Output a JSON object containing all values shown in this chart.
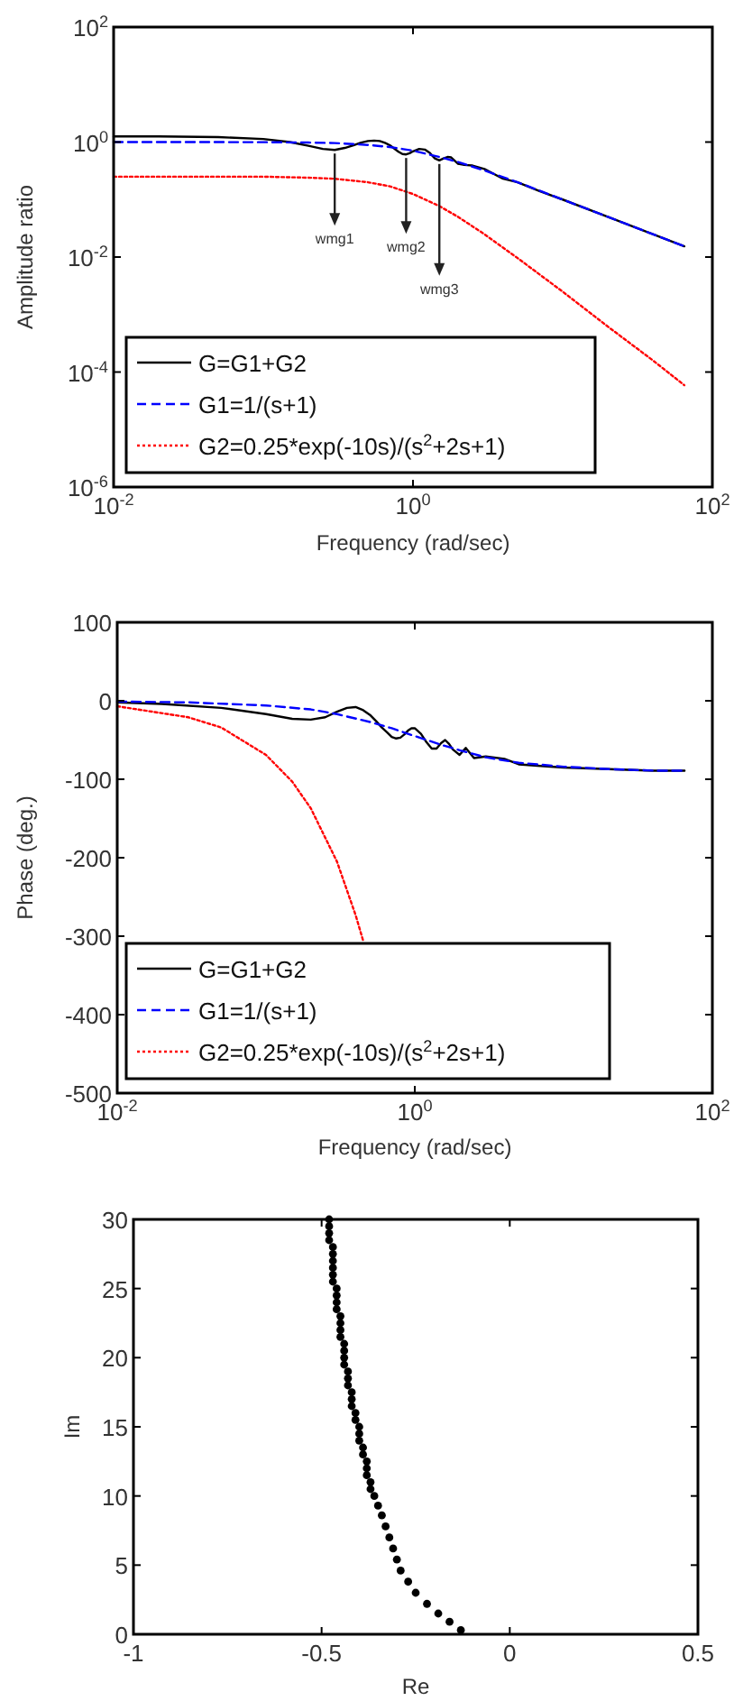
{
  "chart_data": [
    {
      "type": "line",
      "xlabel": "Frequency (rad/sec)",
      "ylabel": "Amplitude ratio",
      "log": "xy",
      "legend": "bottom left",
      "xlim": [
        0.01,
        100
      ],
      "xticks": [
        {
          "value": 0.01,
          "label": "10$^{-2}$"
        },
        {
          "value": 1,
          "label": "10$^{0}$"
        },
        {
          "value": 100,
          "label": "10$^{2}$"
        }
      ],
      "ylim": [
        1e-06,
        100
      ],
      "yticks": [
        {
          "value": 1e-06,
          "label": "10$^{-6}$"
        },
        {
          "value": 0.0001,
          "label": "10$^{-4}$"
        },
        {
          "value": 0.01,
          "label": "10$^{-2}$"
        },
        {
          "value": 1,
          "label": "10$^{0}$"
        },
        {
          "value": 100,
          "label": "10$^{2}$"
        }
      ],
      "series": [
        {
          "name": "G=G1+G2",
          "color": "#000000",
          "line_style": "solid",
          "x": [
            0.01,
            0.02,
            0.05,
            0.1,
            0.15,
            0.2,
            0.25,
            0.3,
            0.35,
            0.4,
            0.45,
            0.5,
            0.55,
            0.6,
            0.65,
            0.7,
            0.75,
            0.8,
            0.85,
            0.9,
            0.95,
            1,
            1.1,
            1.2,
            1.3,
            1.4,
            1.5,
            1.6,
            1.7,
            1.8,
            2,
            2.2,
            2.5,
            3,
            4,
            5,
            7,
            10,
            20,
            40,
            65
          ],
          "values": [
            1.25,
            1.25,
            1.22,
            1.13,
            1.0,
            0.86,
            0.76,
            0.73,
            0.79,
            0.88,
            0.98,
            1.04,
            1.06,
            1.04,
            0.97,
            0.88,
            0.77,
            0.68,
            0.62,
            0.61,
            0.64,
            0.69,
            0.76,
            0.74,
            0.64,
            0.52,
            0.48,
            0.52,
            0.55,
            0.54,
            0.42,
            0.4,
            0.39,
            0.34,
            0.23,
            0.2,
            0.14,
            0.1,
            0.05,
            0.025,
            0.0154
          ]
        },
        {
          "name": "G1=1/(s+1)",
          "color": "#0000ff",
          "line_style": "dashed",
          "x": [
            0.01,
            0.03,
            0.1,
            0.2,
            0.3,
            0.5,
            0.7,
            1,
            1.5,
            2,
            3,
            5,
            10,
            20,
            40,
            65
          ],
          "values": [
            1,
            1,
            0.995,
            0.98,
            0.96,
            0.89,
            0.82,
            0.71,
            0.55,
            0.45,
            0.32,
            0.2,
            0.1,
            0.05,
            0.025,
            0.0154
          ]
        },
        {
          "name": "G2=0.25*exp(-10s)/(s$^{2}$+2s+1)",
          "color": "#ff0000",
          "line_style": "dotted",
          "x": [
            0.01,
            0.1,
            0.2,
            0.3,
            0.5,
            0.7,
            1,
            1.5,
            2,
            3,
            5,
            10,
            20,
            40,
            65
          ],
          "values": [
            0.25,
            0.25,
            0.24,
            0.23,
            0.2,
            0.17,
            0.125,
            0.077,
            0.05,
            0.025,
            0.0096,
            0.0025,
            0.00062,
            0.00016,
            5.9e-05
          ]
        }
      ],
      "annotations": [
        {
          "text": "wmg1",
          "x": 0.3,
          "y": 0.73
        },
        {
          "text": "wmg2",
          "x": 0.9,
          "y": 0.61
        },
        {
          "text": "wmg3",
          "x": 1.5,
          "y": 0.48
        }
      ]
    },
    {
      "type": "line",
      "xlabel": "Frequency (rad/sec)",
      "ylabel": "Phase (deg.)",
      "log": "x",
      "legend": "bottom left",
      "xlim": [
        0.01,
        100
      ],
      "xticks": [
        {
          "value": 0.01,
          "label": "10$^{-2}$"
        },
        {
          "value": 1,
          "label": "10$^{0}$"
        },
        {
          "value": 100,
          "label": "10$^{2}$"
        }
      ],
      "ylim": [
        -500,
        100
      ],
      "yticks": [
        -500,
        -400,
        -300,
        -200,
        -100,
        0,
        100
      ],
      "series": [
        {
          "name": "G=G1+G2",
          "color": "#000000",
          "line_style": "solid",
          "x": [
            0.01,
            0.02,
            0.05,
            0.1,
            0.15,
            0.2,
            0.25,
            0.3,
            0.35,
            0.4,
            0.45,
            0.5,
            0.55,
            0.6,
            0.65,
            0.7,
            0.75,
            0.8,
            0.85,
            0.9,
            0.95,
            1,
            1.1,
            1.2,
            1.3,
            1.4,
            1.5,
            1.6,
            1.7,
            1.8,
            2,
            2.2,
            2.5,
            3,
            4,
            5,
            7,
            10,
            20,
            40,
            65
          ],
          "values": [
            -2,
            -4,
            -9,
            -17,
            -23,
            -24,
            -21,
            -14,
            -9,
            -8,
            -12,
            -18,
            -26,
            -34,
            -40,
            -46,
            -48,
            -47,
            -43,
            -38,
            -35,
            -35,
            -42,
            -53,
            -61,
            -61,
            -54,
            -50,
            -55,
            -62,
            -69,
            -60,
            -73,
            -71,
            -74,
            -81,
            -83,
            -85,
            -87,
            -89,
            -89
          ]
        },
        {
          "name": "G1=1/(s+1)",
          "color": "#0000ff",
          "line_style": "dashed",
          "x": [
            0.01,
            0.03,
            0.1,
            0.2,
            0.3,
            0.5,
            0.7,
            1,
            1.5,
            2,
            3,
            5,
            10,
            20,
            40,
            65
          ],
          "values": [
            -1,
            -2,
            -6,
            -11,
            -17,
            -27,
            -35,
            -45,
            -56,
            -63,
            -72,
            -79,
            -84,
            -87,
            -89,
            -89
          ]
        },
        {
          "name": "G2=0.25*exp(-10s)/(s$^{2}$+2s+1)",
          "color": "#ff0000",
          "line_style": "dotted",
          "x": [
            0.01,
            0.03,
            0.05,
            0.1,
            0.15,
            0.2,
            0.3,
            0.4,
            0.45
          ],
          "values": [
            -7,
            -21,
            -34,
            -69,
            -103,
            -137,
            -205,
            -273,
            -306
          ]
        }
      ]
    },
    {
      "type": "scatter",
      "xlabel": "Re",
      "ylabel": "Im",
      "marker": "circle",
      "color": "#000000",
      "xlim": [
        -1,
        0.5
      ],
      "xticks": [
        -1,
        -0.5,
        0,
        0.5
      ],
      "ylim": [
        0,
        30
      ],
      "yticks": [
        0,
        5,
        10,
        15,
        20,
        25,
        30
      ],
      "x": [
        -0.13,
        -0.16,
        -0.19,
        -0.22,
        -0.25,
        -0.27,
        -0.29,
        -0.3,
        -0.31,
        -0.32,
        -0.33,
        -0.34,
        -0.35,
        -0.36,
        -0.37,
        -0.37,
        -0.38,
        -0.38,
        -0.38,
        -0.39,
        -0.39,
        -0.4,
        -0.4,
        -0.4,
        -0.41,
        -0.41,
        -0.42,
        -0.42,
        -0.42,
        -0.43,
        -0.43,
        -0.43,
        -0.44,
        -0.44,
        -0.44,
        -0.44,
        -0.45,
        -0.45,
        -0.45,
        -0.45,
        -0.46,
        -0.46,
        -0.46,
        -0.46,
        -0.47,
        -0.47,
        -0.47,
        -0.47,
        -0.47,
        -0.47,
        -0.48,
        -0.48,
        -0.48,
        -0.48
      ],
      "values": [
        0.3,
        0.9,
        1.5,
        2.2,
        3,
        3.8,
        4.6,
        5.4,
        6.2,
        7,
        7.8,
        8.6,
        9.3,
        10,
        10.5,
        11,
        11.5,
        12,
        12.5,
        13,
        13.5,
        14,
        14.5,
        15,
        15.5,
        16,
        16.5,
        17,
        17.5,
        18,
        18.5,
        19,
        19.5,
        20,
        20.5,
        21,
        21.5,
        22,
        22.5,
        23,
        23.5,
        24,
        24.5,
        25,
        25.5,
        26,
        26.5,
        27,
        27.5,
        28,
        28.5,
        29,
        29.5,
        30
      ]
    }
  ]
}
